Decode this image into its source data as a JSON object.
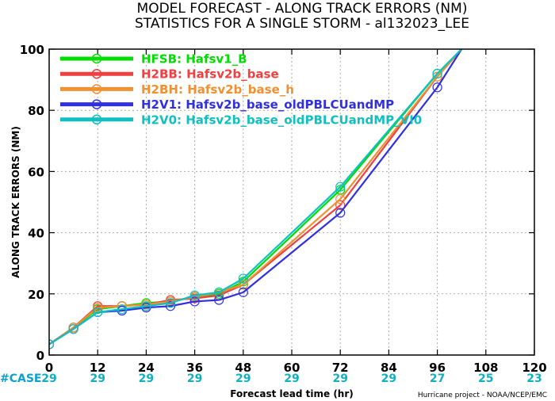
{
  "chart_data": {
    "type": "line",
    "title": "MODEL FORECAST - ALONG TRACK ERRORS (NM)",
    "subtitle": "STATISTICS FOR A SINGLE STORM - al132023_LEE",
    "xlabel": "Forecast lead time (hr)",
    "ylabel": "ALONG TRACK ERRORS (NM)",
    "xlim": [
      0,
      120
    ],
    "ylim": [
      0,
      100
    ],
    "x_ticks": [
      0,
      12,
      24,
      36,
      48,
      60,
      72,
      84,
      96,
      108,
      120
    ],
    "y_ticks": [
      0,
      20,
      40,
      60,
      80,
      100
    ],
    "grid": true,
    "legend_position": "top-left",
    "x": [
      0,
      6,
      12,
      18,
      24,
      30,
      36,
      42,
      48,
      72,
      96,
      102
    ],
    "series": [
      {
        "name": "HFSB: Hafsv1_B",
        "color": "#00dd00",
        "values": [
          3.5,
          9,
          15,
          16,
          17,
          17.5,
          19,
          20,
          24,
          54,
          92,
          100
        ]
      },
      {
        "name": "H2BB: Hafsv2b_base",
        "color": "#f04040",
        "values": [
          3.5,
          9,
          16,
          16,
          16.5,
          18,
          18.5,
          19.5,
          23,
          49,
          91,
          100
        ]
      },
      {
        "name": "H2BH: Hafsv2b_base_h",
        "color": "#f09030",
        "values": [
          3.5,
          9,
          15.5,
          16,
          16.5,
          17.5,
          19,
          20.5,
          23,
          51,
          91,
          100
        ]
      },
      {
        "name": "H2V1: Hafsv2b_base_oldPBLCUandMP",
        "color": "#3030e0",
        "values": [
          3.5,
          8.5,
          14,
          14.5,
          15.5,
          16,
          17.5,
          18,
          20.5,
          46.5,
          87.5,
          100
        ]
      },
      {
        "name": "H2V0: Hafsv2b_base_oldPBLCUandMP_VI0",
        "color": "#10c0c0",
        "values": [
          3.5,
          8.5,
          14,
          15,
          16,
          17,
          19.5,
          20.5,
          25,
          55,
          92,
          100
        ]
      }
    ],
    "cases": {
      "label": "#CASE",
      "x": [
        0,
        12,
        24,
        36,
        48,
        60,
        72,
        84,
        96,
        108,
        120
      ],
      "values": [
        "29",
        "29",
        "29",
        "29",
        "29",
        "29",
        "29",
        "29",
        "27",
        "25",
        "23"
      ]
    },
    "credit": "Hurricane project - NOAA/NCEP/EMC"
  },
  "colors": {
    "case_label": "#10a0d0",
    "case_value": "#10b0c0",
    "grid": "#aaaaaa"
  }
}
